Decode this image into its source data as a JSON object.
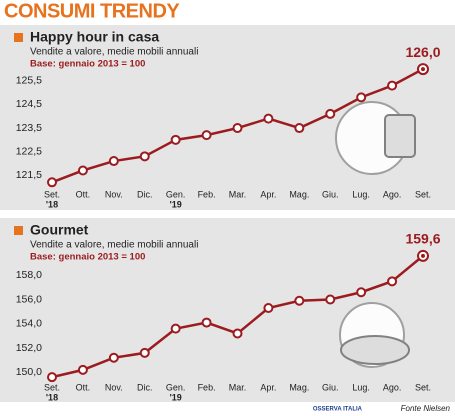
{
  "title": "CONSUMI TRENDY",
  "chart_data": [
    {
      "type": "line",
      "title": "Happy hour in casa",
      "subtitle": "Vendite a valore, medie mobili annuali",
      "note": "Base: gennaio 2013 = 100",
      "categories": [
        "Set.",
        "Ott.",
        "Nov.",
        "Dic.",
        "Gen.",
        "Feb.",
        "Mar.",
        "Apr.",
        "Mag.",
        "Giu.",
        "Lug.",
        "Ago.",
        "Set."
      ],
      "year_labels": [
        "'18",
        null,
        null,
        null,
        "'19",
        null,
        null,
        null,
        null,
        null,
        null,
        null,
        null
      ],
      "series": [
        {
          "name": "Happy hour in casa",
          "color": "#9b1b1e",
          "values": [
            121.2,
            121.7,
            122.1,
            122.3,
            123.0,
            123.2,
            123.5,
            123.9,
            123.5,
            124.1,
            124.8,
            125.3,
            126.0
          ],
          "value_labels": [
            null,
            null,
            null,
            null,
            null,
            null,
            null,
            null,
            null,
            null,
            null,
            null,
            "126,0"
          ]
        }
      ],
      "ylim": [
        121,
        126.3
      ],
      "yticks": [
        {
          "value": 121.5,
          "label": "121,5"
        },
        {
          "value": 122.5,
          "label": "122,5"
        },
        {
          "value": 123.5,
          "label": "123,5"
        },
        {
          "value": 124.5,
          "label": "124,5"
        },
        {
          "value": 125.5,
          "label": "125,5"
        }
      ]
    },
    {
      "type": "line",
      "title": "Gourmet",
      "subtitle": "Vendite a valore, medie mobili annuali",
      "note": "Base: gennaio 2013 = 100",
      "categories": [
        "Set.",
        "Ott.",
        "Nov.",
        "Dic.",
        "Gen.",
        "Feb.",
        "Mar.",
        "Apr.",
        "Mag.",
        "Giu.",
        "Lug.",
        "Ago.",
        "Set."
      ],
      "year_labels": [
        "'18",
        null,
        null,
        null,
        "'19",
        null,
        null,
        null,
        null,
        null,
        null,
        null,
        null
      ],
      "series": [
        {
          "name": "Gourmet",
          "color": "#9b1b1e",
          "values": [
            149.6,
            150.2,
            151.2,
            151.6,
            153.6,
            154.1,
            153.2,
            155.3,
            155.9,
            156.0,
            156.6,
            157.5,
            159.6
          ],
          "value_labels": [
            null,
            null,
            null,
            null,
            null,
            null,
            null,
            null,
            null,
            null,
            null,
            null,
            "159,6"
          ]
        }
      ],
      "ylim": [
        149.2,
        160
      ],
      "yticks": [
        {
          "value": 150,
          "label": "150,0"
        },
        {
          "value": 152,
          "label": "152,0"
        },
        {
          "value": 154,
          "label": "154,0"
        },
        {
          "value": 156,
          "label": "156,0"
        },
        {
          "value": 158,
          "label": "158,0"
        }
      ]
    }
  ],
  "source": "Fonte Nielsen",
  "logo": "OSSERVA ITALIA"
}
